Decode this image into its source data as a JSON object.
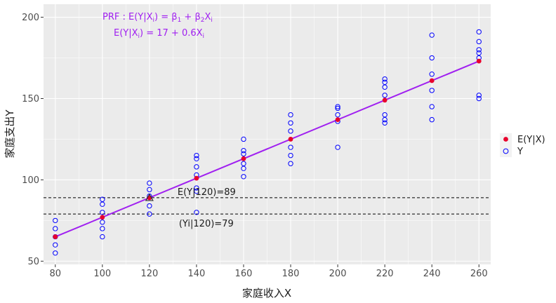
{
  "chart_data": {
    "type": "scatter",
    "xlabel": "家庭收入X",
    "ylabel": "家庭支出Y",
    "xlim": [
      75,
      265
    ],
    "ylim": [
      48,
      208
    ],
    "xticks": [
      80,
      100,
      120,
      140,
      160,
      180,
      200,
      220,
      240,
      260
    ],
    "yticks": [
      50,
      100,
      150,
      200
    ],
    "grid": true,
    "legend_position": "right",
    "legend": [
      "E(Y|X)",
      "Y"
    ],
    "colors": {
      "mean_points": "#e8002d",
      "observations": "#0000ff",
      "prf_line": "#a020f0",
      "formula_text": "#a020f0",
      "panel_bg": "#ebebeb",
      "grid": "#ffffff"
    },
    "series": [
      {
        "name": "Y",
        "marker": "open-circle",
        "points": [
          [
            80,
            55
          ],
          [
            80,
            60
          ],
          [
            80,
            65
          ],
          [
            80,
            70
          ],
          [
            80,
            75
          ],
          [
            100,
            65
          ],
          [
            100,
            70
          ],
          [
            100,
            74
          ],
          [
            100,
            80
          ],
          [
            100,
            85
          ],
          [
            100,
            88
          ],
          [
            120,
            79
          ],
          [
            120,
            84
          ],
          [
            120,
            90
          ],
          [
            120,
            94
          ],
          [
            120,
            98
          ],
          [
            140,
            80
          ],
          [
            140,
            93
          ],
          [
            140,
            95
          ],
          [
            140,
            103
          ],
          [
            140,
            108
          ],
          [
            140,
            113
          ],
          [
            140,
            115
          ],
          [
            160,
            102
          ],
          [
            160,
            107
          ],
          [
            160,
            110
          ],
          [
            160,
            116
          ],
          [
            160,
            118
          ],
          [
            160,
            125
          ],
          [
            180,
            110
          ],
          [
            180,
            115
          ],
          [
            180,
            120
          ],
          [
            180,
            130
          ],
          [
            180,
            135
          ],
          [
            180,
            140
          ],
          [
            200,
            120
          ],
          [
            200,
            136
          ],
          [
            200,
            140
          ],
          [
            200,
            144
          ],
          [
            200,
            145
          ],
          [
            220,
            135
          ],
          [
            220,
            137
          ],
          [
            220,
            140
          ],
          [
            220,
            152
          ],
          [
            220,
            157
          ],
          [
            220,
            160
          ],
          [
            220,
            162
          ],
          [
            240,
            137
          ],
          [
            240,
            145
          ],
          [
            240,
            155
          ],
          [
            240,
            165
          ],
          [
            240,
            175
          ],
          [
            240,
            189
          ],
          [
            260,
            150
          ],
          [
            260,
            152
          ],
          [
            260,
            175
          ],
          [
            260,
            178
          ],
          [
            260,
            180
          ],
          [
            260,
            185
          ],
          [
            260,
            191
          ]
        ]
      },
      {
        "name": "E(Y|X)",
        "marker": "filled-circle",
        "points": [
          [
            80,
            65
          ],
          [
            100,
            77
          ],
          [
            120,
            89
          ],
          [
            140,
            101
          ],
          [
            160,
            113
          ],
          [
            180,
            125
          ],
          [
            200,
            137
          ],
          [
            220,
            149
          ],
          [
            240,
            161
          ],
          [
            260,
            173
          ]
        ]
      }
    ],
    "prf_line": {
      "intercept": 17,
      "slope": 0.6,
      "x_range": [
        80,
        260
      ]
    },
    "hlines": [
      89,
      79
    ],
    "triangle_marker": [
      120,
      89
    ],
    "annotations": {
      "ey120": {
        "text": "E(Y|120)=89",
        "x": 120,
        "y": 89
      },
      "yi120": {
        "text": "(Yi|120)=79",
        "x": 120,
        "y": 79
      },
      "prf_formula": {
        "prefix": "PRF : E(Y|X",
        "sub_i": "i",
        "middle": ") = β",
        "sub_1": "1",
        "plus": " + β",
        "sub_2": "2",
        "x": "X",
        "sub_i2": "i"
      },
      "fitted_formula": {
        "prefix": "E(Y|X",
        "sub_i": "i",
        "middle": ") = 17 + 0.6X",
        "sub_i2": "i"
      }
    }
  }
}
